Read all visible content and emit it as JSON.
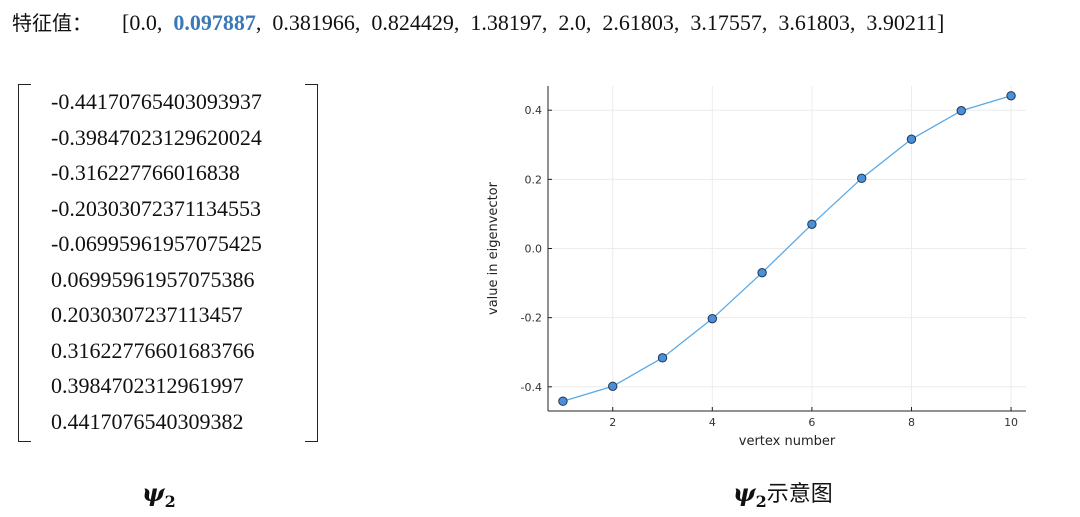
{
  "eigen": {
    "label": "特征值：",
    "open": "[",
    "close": "]",
    "values": [
      "0.0",
      "0.097887",
      "0.381966",
      "0.824429",
      "1.38197",
      "2.0",
      "2.61803",
      "3.17557",
      "3.61803",
      "3.90211"
    ],
    "highlight_index": 1,
    "highlight_color": "#3a78b8"
  },
  "vector": [
    "-0.44170765403093937",
    "-0.39847023129620024",
    "-0.316227766016838",
    "-0.20303072371134553",
    "-0.06995961957075425",
    "0.06995961957075386",
    "0.2030307237113457",
    "0.31622776601683766",
    "0.3984702312961997",
    "0.4417076540309382"
  ],
  "captions": {
    "left_symbol": "ψ",
    "left_sub": "2",
    "right_symbol": "ψ",
    "right_sub": "2",
    "right_text": "示意图"
  },
  "chart_data": {
    "type": "line",
    "xlabel": "vertex number",
    "ylabel": "value in eigenvector",
    "x": [
      1,
      2,
      3,
      4,
      5,
      6,
      7,
      8,
      9,
      10
    ],
    "series": [
      {
        "values": [
          -0.4417,
          -0.3985,
          -0.3162,
          -0.203,
          -0.07,
          0.07,
          0.203,
          0.3162,
          0.3985,
          0.4417
        ]
      }
    ],
    "xlim": [
      0.7,
      10.3
    ],
    "ylim": [
      -0.47,
      0.47
    ],
    "xticks": [
      2,
      4,
      6,
      8,
      10
    ],
    "yticks": [
      -0.4,
      -0.2,
      0.0,
      0.2,
      0.4
    ],
    "xtick_labels": [
      "2",
      "4",
      "6",
      "8",
      "10"
    ],
    "ytick_labels": [
      "-0.4",
      "-0.2",
      "0.0",
      "0.2",
      "0.4"
    ],
    "grid": true,
    "line_color": "#5aa9e6",
    "marker_color": "#4a90d9",
    "marker_edge": "#1f3552"
  }
}
